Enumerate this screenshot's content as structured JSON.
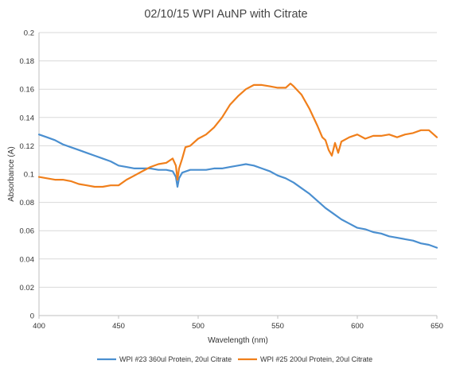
{
  "chart_data": {
    "type": "line",
    "title": "02/10/15 WPI AuNP with Citrate",
    "xlabel": "Wavelength (nm)",
    "ylabel": "Absorbance (A)",
    "xlim": [
      400,
      650
    ],
    "ylim": [
      0,
      0.2
    ],
    "xticks": [
      400,
      450,
      500,
      550,
      600,
      650
    ],
    "yticks": [
      0,
      0.02,
      0.04,
      0.06,
      0.08,
      0.1,
      0.12,
      0.14,
      0.16,
      0.18,
      0.2
    ],
    "ytick_labels": [
      "0",
      "0.02",
      "0.04",
      "0.06",
      "0.08",
      "0.1",
      "0.12",
      "0.14",
      "0.16",
      "0.18",
      "0.2"
    ],
    "grid": "horizontal",
    "legend_position": "bottom",
    "series": [
      {
        "name": "WPI #23 360ul Protein, 20ul Citrate",
        "color": "#4a8fd0",
        "x": [
          400,
          405,
          410,
          415,
          420,
          425,
          430,
          435,
          440,
          445,
          450,
          455,
          460,
          465,
          470,
          475,
          480,
          484,
          486,
          487,
          488,
          490,
          495,
          500,
          505,
          510,
          515,
          520,
          525,
          530,
          535,
          540,
          545,
          550,
          555,
          560,
          565,
          570,
          575,
          580,
          585,
          590,
          595,
          600,
          605,
          610,
          615,
          620,
          625,
          630,
          635,
          640,
          645,
          650
        ],
        "y": [
          0.128,
          0.126,
          0.124,
          0.121,
          0.119,
          0.117,
          0.115,
          0.113,
          0.111,
          0.109,
          0.106,
          0.105,
          0.104,
          0.104,
          0.104,
          0.103,
          0.103,
          0.102,
          0.098,
          0.091,
          0.097,
          0.101,
          0.103,
          0.103,
          0.103,
          0.104,
          0.104,
          0.105,
          0.106,
          0.107,
          0.106,
          0.104,
          0.102,
          0.099,
          0.097,
          0.094,
          0.09,
          0.086,
          0.081,
          0.076,
          0.072,
          0.068,
          0.065,
          0.062,
          0.061,
          0.059,
          0.058,
          0.056,
          0.055,
          0.054,
          0.053,
          0.051,
          0.05,
          0.048
        ]
      },
      {
        "name": "WPI #25 200ul Protein, 20ul Citrate",
        "color": "#f07f1b",
        "x": [
          400,
          405,
          410,
          415,
          420,
          425,
          430,
          435,
          440,
          445,
          450,
          455,
          460,
          465,
          470,
          475,
          480,
          484,
          486,
          487,
          488,
          490,
          492,
          495,
          500,
          505,
          510,
          515,
          520,
          525,
          530,
          535,
          540,
          545,
          550,
          555,
          558,
          560,
          565,
          570,
          575,
          578,
          580,
          582,
          584,
          586,
          588,
          590,
          595,
          600,
          605,
          610,
          615,
          620,
          625,
          630,
          635,
          640,
          645,
          650
        ],
        "y": [
          0.098,
          0.097,
          0.096,
          0.096,
          0.095,
          0.093,
          0.092,
          0.091,
          0.091,
          0.092,
          0.092,
          0.096,
          0.099,
          0.102,
          0.105,
          0.107,
          0.108,
          0.111,
          0.106,
          0.096,
          0.104,
          0.111,
          0.119,
          0.12,
          0.125,
          0.128,
          0.133,
          0.14,
          0.149,
          0.155,
          0.16,
          0.163,
          0.163,
          0.162,
          0.161,
          0.161,
          0.164,
          0.162,
          0.156,
          0.146,
          0.134,
          0.126,
          0.124,
          0.117,
          0.113,
          0.122,
          0.115,
          0.123,
          0.126,
          0.128,
          0.125,
          0.127,
          0.127,
          0.128,
          0.126,
          0.128,
          0.129,
          0.131,
          0.131,
          0.126
        ]
      }
    ]
  }
}
